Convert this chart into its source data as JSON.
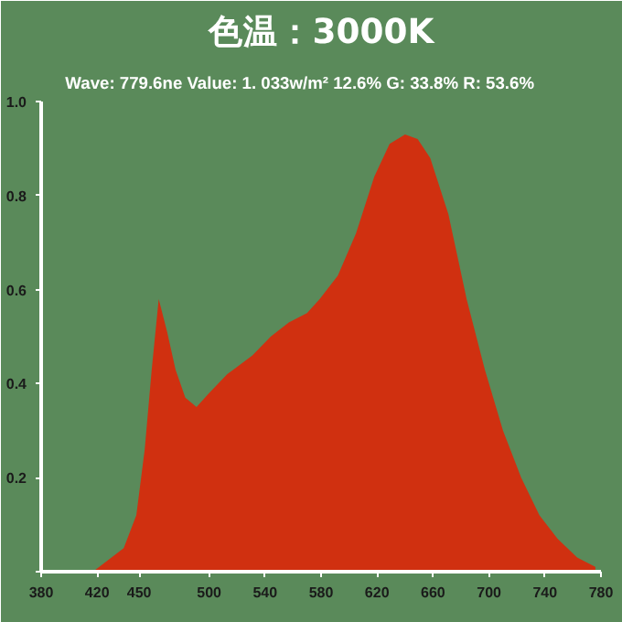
{
  "chart_data": {
    "type": "area",
    "title": "色温：3000K",
    "subtitle": "Wave: 779.6ne  Value: 1. 033w/m²      12.6%   G: 33.8%  R: 53.6%",
    "xlim": [
      380,
      780
    ],
    "xticks": [
      380,
      420,
      450,
      500,
      540,
      580,
      620,
      660,
      700,
      740,
      780
    ],
    "ylim": [
      0,
      1
    ],
    "yticks": [
      {
        "value": 0,
        "label": null
      },
      0.2,
      0.4,
      0.6,
      0.8,
      {
        "value": 1,
        "label": "1.0"
      }
    ],
    "grid": false,
    "series": [
      {
        "x": [
          417,
          439,
          448,
          454,
          459,
          464,
          470,
          476,
          483,
          491,
          500,
          513,
          531,
          544,
          557,
          570,
          579,
          592,
          605,
          618,
          629,
          640,
          649,
          658,
          671,
          684,
          697,
          710,
          723,
          736,
          749,
          763,
          776
        ],
        "values": [
          0,
          0.05,
          0.12,
          0.26,
          0.43,
          0.58,
          0.51,
          0.43,
          0.37,
          0.35,
          0.38,
          0.42,
          0.46,
          0.5,
          0.53,
          0.55,
          0.58,
          0.63,
          0.72,
          0.84,
          0.91,
          0.93,
          0.92,
          0.88,
          0.76,
          0.58,
          0.43,
          0.3,
          0.2,
          0.12,
          0.07,
          0.03,
          0.01
        ],
        "color": "#d03010"
      }
    ]
  }
}
